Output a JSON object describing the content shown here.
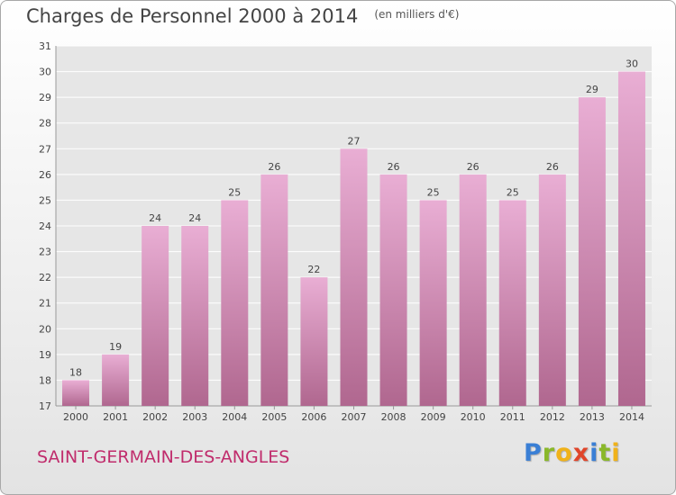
{
  "title": "Charges de Personnel 2000 à 2014",
  "subtitle": "(en milliers d'€)",
  "city": "SAINT-GERMAIN-DES-ANGLES",
  "logo": {
    "letters": [
      "P",
      "r",
      "o",
      "x",
      "i",
      "t",
      "i"
    ],
    "colors": [
      "#3a7fd5",
      "#8ab82a",
      "#f0b21a",
      "#e0452a",
      "#3a7fd5",
      "#8ab82a",
      "#f0b21a"
    ]
  },
  "colors": {
    "bar_top": "#e9aed4",
    "bar_bottom": "#b0678f",
    "title_city": "#c02c6c"
  },
  "chart_data": {
    "type": "bar",
    "categories": [
      "2000",
      "2001",
      "2002",
      "2003",
      "2004",
      "2005",
      "2006",
      "2007",
      "2008",
      "2009",
      "2010",
      "2011",
      "2012",
      "2013",
      "2014"
    ],
    "values": [
      18,
      19,
      24,
      24,
      25,
      26,
      22,
      27,
      26,
      25,
      26,
      25,
      26,
      29,
      30
    ],
    "ylim": [
      17,
      31
    ],
    "yticks": [
      17,
      18,
      19,
      20,
      21,
      22,
      23,
      24,
      25,
      26,
      27,
      28,
      29,
      30,
      31
    ],
    "grid": true,
    "title": "Charges de Personnel 2000 à 2014",
    "xlabel": "",
    "ylabel": ""
  }
}
